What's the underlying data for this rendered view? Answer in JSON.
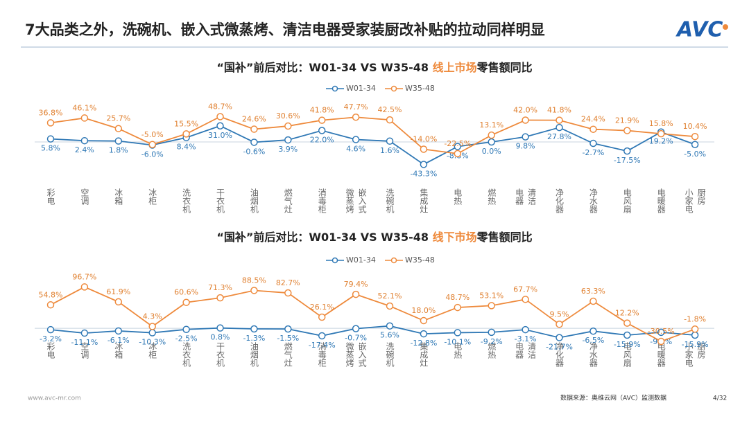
{
  "header": {
    "title": "7大品类之外，洗碗机、嵌入式微蒸烤、清洁电器受家装厨改补贴的拉动同样明显",
    "logo": "AVC"
  },
  "chart_data": [
    {
      "type": "line",
      "title_parts": [
        "“国补”前后对比：W01-34 VS W35-48 ",
        "线上市场",
        "零售额同比"
      ],
      "categories": [
        [
          "彩电"
        ],
        [
          "空调"
        ],
        [
          "冰箱"
        ],
        [
          "冰柜"
        ],
        [
          "洗衣机"
        ],
        [
          "干衣机"
        ],
        [
          "油烟机"
        ],
        [
          "燃气灶"
        ],
        [
          "消毒柜"
        ],
        [
          "微蒸烤",
          "嵌入式"
        ],
        [
          "洗碗机"
        ],
        [
          "集成灶"
        ],
        [
          "电热"
        ],
        [
          "燃热"
        ],
        [
          "电器",
          "清洁"
        ],
        [
          "净化器"
        ],
        [
          "净水器"
        ],
        [
          "电风扇"
        ],
        [
          "电暖器"
        ],
        [
          "小家电",
          "厨房"
        ]
      ],
      "ylim": [
        -80,
        80
      ],
      "series": [
        {
          "name": "W01-34",
          "color": "#2f78b5",
          "values": [
            5.8,
            2.4,
            1.8,
            -6.0,
            8.4,
            31.0,
            -0.6,
            3.9,
            22.0,
            4.6,
            1.6,
            -43.3,
            -8.8,
            0.0,
            9.8,
            27.8,
            -2.7,
            -17.5,
            19.2,
            -5.0
          ],
          "value_labels": [
            "5.8%",
            "2.4%",
            "1.8%",
            "-6.0%",
            "8.4%",
            "31.0%",
            "-0.6%",
            "3.9%",
            "22.0%",
            "4.6%",
            "1.6%",
            "-43.3%",
            "-8.8%",
            "0.0%",
            "9.8%",
            "27.8%",
            "-2.7%",
            "-17.5%",
            "19.2%",
            "-5.0%"
          ]
        },
        {
          "name": "W35-48",
          "color": "#ee8a3c",
          "values": [
            36.8,
            46.1,
            25.7,
            -5.0,
            15.5,
            48.7,
            24.6,
            30.6,
            41.8,
            47.7,
            42.5,
            -14.0,
            -22.5,
            13.1,
            42.0,
            41.8,
            24.4,
            21.9,
            15.8,
            10.4
          ],
          "value_labels": [
            "36.8%",
            "46.1%",
            "25.7%",
            "-5.0%",
            "15.5%",
            "48.7%",
            "24.6%",
            "30.6%",
            "41.8%",
            "47.7%",
            "42.5%",
            "-14.0%",
            "-22.5%",
            "13.1%",
            "42.0%",
            "41.8%",
            "24.4%",
            "21.9%",
            "15.8%",
            "10.4%"
          ]
        }
      ]
    },
    {
      "type": "line",
      "title_parts": [
        "“国补”前后对比：W01-34 VS W35-48 ",
        "线下市场",
        "零售额同比"
      ],
      "categories": [
        [
          "彩电"
        ],
        [
          "空调"
        ],
        [
          "冰箱"
        ],
        [
          "冰柜"
        ],
        [
          "洗衣机"
        ],
        [
          "干衣机"
        ],
        [
          "油烟机"
        ],
        [
          "燃气灶"
        ],
        [
          "消毒柜"
        ],
        [
          "微蒸烤",
          "嵌入式"
        ],
        [
          "洗碗机"
        ],
        [
          "集成灶"
        ],
        [
          "电热"
        ],
        [
          "燃热"
        ],
        [
          "电器",
          "清洁"
        ],
        [
          "净化器"
        ],
        [
          "净水器"
        ],
        [
          "电风扇"
        ],
        [
          "电暖器"
        ],
        [
          "小家电",
          "厨房"
        ]
      ],
      "ylim": [
        -100,
        120
      ],
      "series": [
        {
          "name": "W01-34",
          "color": "#2f78b5",
          "values": [
            -3.2,
            -11.1,
            -6.1,
            -10.3,
            -2.5,
            0.8,
            -1.3,
            -1.5,
            -17.4,
            -0.7,
            5.6,
            -12.8,
            -10.1,
            -9.2,
            -3.1,
            -21.7,
            -6.5,
            -15.9,
            -9.2,
            -15.9
          ],
          "value_labels": [
            "-3.2%",
            "-11.1%",
            "-6.1%",
            "-10.3%",
            "-2.5%",
            "0.8%",
            "-1.3%",
            "-1.5%",
            "-17.4%",
            "-0.7%",
            "5.6%",
            "-12.8%",
            "-10.1%",
            "-9.2%",
            "-3.1%",
            "-21.7%",
            "-6.5%",
            "-15.9%",
            "-9.2%",
            "-15.9%"
          ]
        },
        {
          "name": "W35-48",
          "color": "#ee8a3c",
          "values": [
            54.8,
            96.7,
            61.9,
            4.3,
            60.6,
            71.3,
            88.5,
            82.7,
            26.1,
            79.4,
            52.1,
            18.0,
            48.7,
            53.1,
            67.7,
            9.5,
            63.3,
            12.2,
            -30.5,
            -1.8
          ],
          "value_labels": [
            "54.8%",
            "96.7%",
            "61.9%",
            "4.3%",
            "60.6%",
            "71.3%",
            "88.5%",
            "82.7%",
            "26.1%",
            "79.4%",
            "52.1%",
            "18.0%",
            "48.7%",
            "53.1%",
            "67.7%",
            "9.5%",
            "63.3%",
            "12.2%",
            "-30.5%",
            "-1.8%"
          ]
        }
      ]
    }
  ],
  "footer": {
    "url": "www.avc-mr.com",
    "source": "数据来源：奥维云网（AVC）监测数据",
    "page": "4/32"
  }
}
